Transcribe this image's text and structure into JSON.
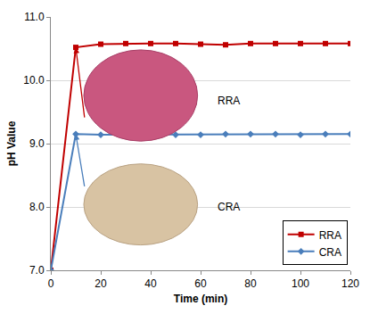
{
  "chart_data": {
    "type": "line",
    "x_label": "Time (min)",
    "y_label": "pH Value",
    "x": [
      0,
      10,
      20,
      30,
      40,
      50,
      60,
      70,
      80,
      90,
      100,
      110,
      120
    ],
    "series": [
      {
        "name": "RRA",
        "color": "#c00000",
        "marker": "square",
        "values": [
          7.0,
          10.52,
          10.57,
          10.58,
          10.58,
          10.58,
          10.57,
          10.56,
          10.58,
          10.58,
          10.58,
          10.58,
          10.58
        ]
      },
      {
        "name": "CRA",
        "color": "#4a7ebb",
        "marker": "diamond",
        "values": [
          7.0,
          9.15,
          9.14,
          9.14,
          9.14,
          9.14,
          9.14,
          9.15,
          9.15,
          9.15,
          9.14,
          9.15,
          9.15
        ]
      }
    ],
    "xlim": [
      0,
      120
    ],
    "xticks": [
      0,
      20,
      40,
      60,
      80,
      100,
      120
    ],
    "ylim": [
      7.0,
      11.0
    ],
    "yticks": [
      {
        "value": 7.0,
        "label": "7.0"
      },
      {
        "value": 8.0,
        "label": "8.0"
      },
      {
        "value": 9.0,
        "label": "9.0"
      },
      {
        "value": 10.0,
        "label": "10.0"
      },
      {
        "value": 11.0,
        "label": "11.0"
      }
    ],
    "grid": true,
    "legend": "bottom-right",
    "annotations": [
      "RRA",
      "CRA"
    ]
  }
}
